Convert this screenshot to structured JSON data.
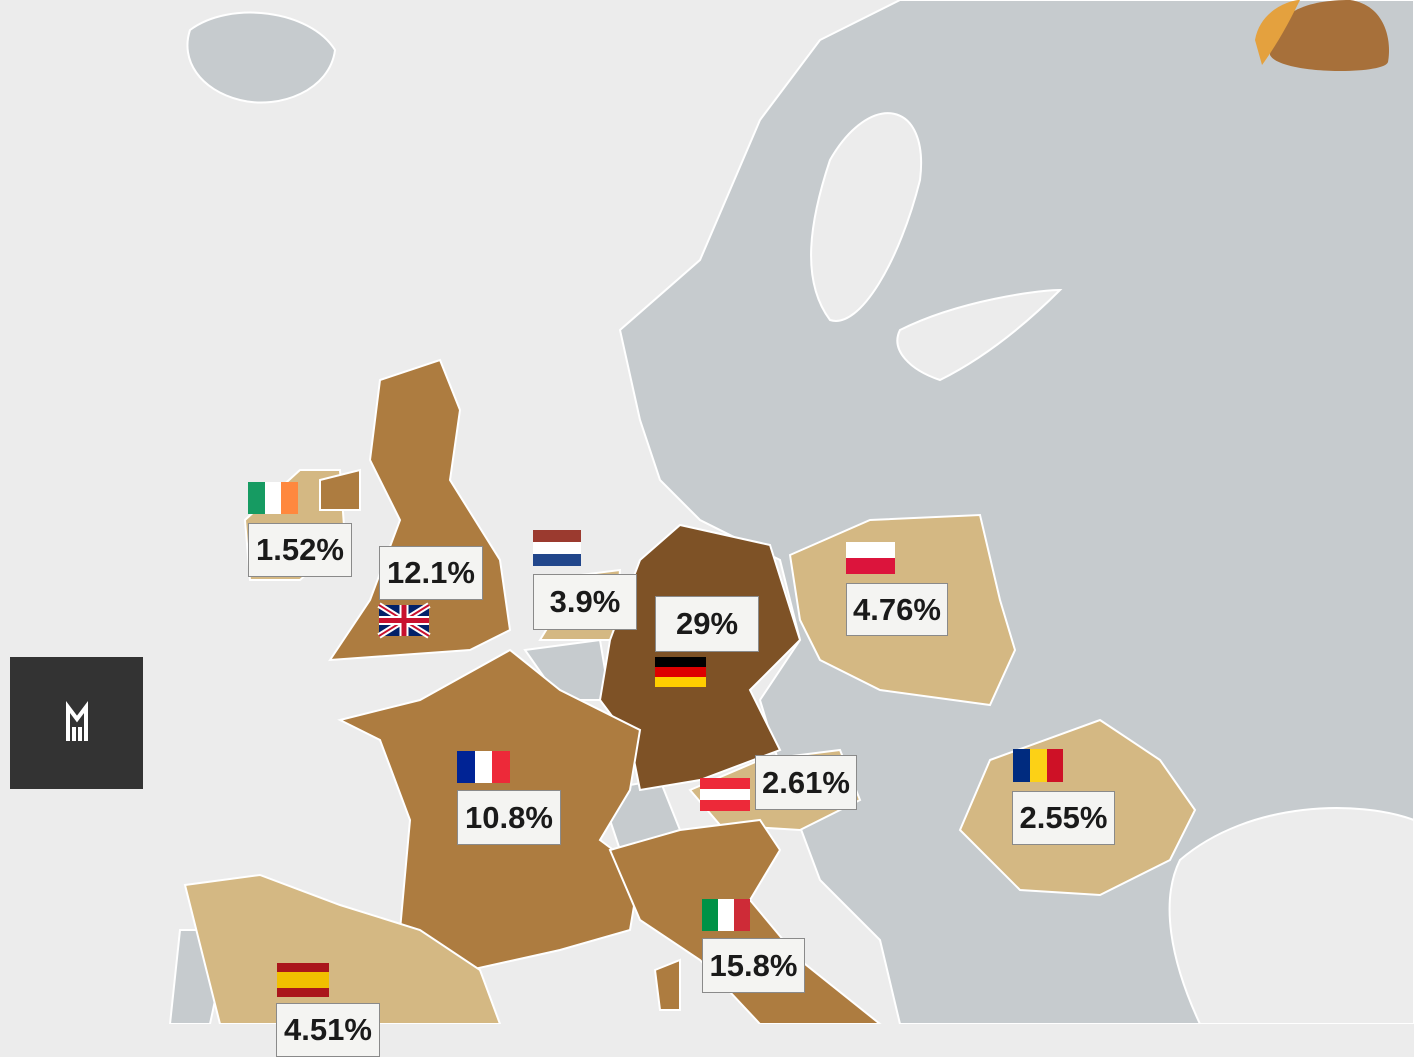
{
  "labels": [
    {
      "text": "1.52%"
    },
    {
      "text": "12.1%"
    },
    {
      "text": "3.9%"
    },
    {
      "text": "29%"
    },
    {
      "text": "4.76%"
    },
    {
      "text": "2.61%"
    },
    {
      "text": "10.8%"
    },
    {
      "text": "2.55%"
    },
    {
      "text": "15.8%"
    },
    {
      "text": "4.51%"
    }
  ]
}
